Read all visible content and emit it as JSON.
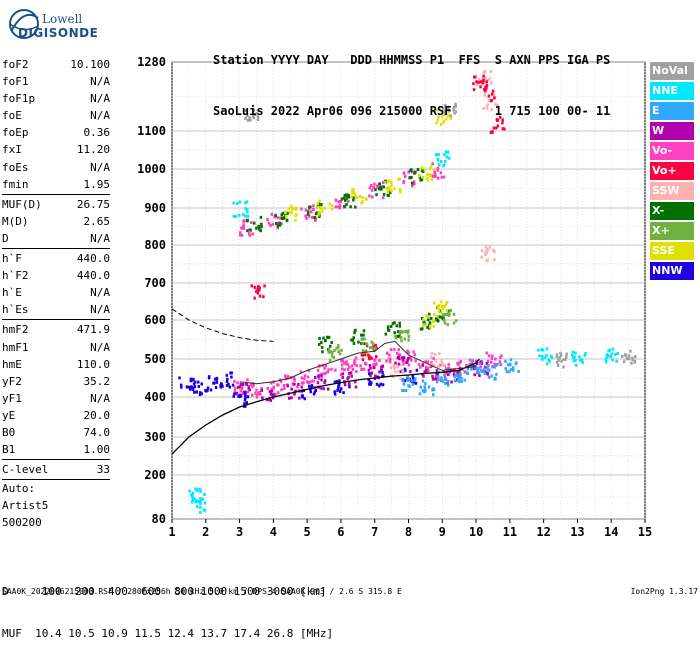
{
  "logo": {
    "line1": "Lowell",
    "line2": "DIGISONDE"
  },
  "header": {
    "line1": "Station YYYY DAY   DDD HHMMSS P1  FFS  S AXN PPS IGA PS",
    "line2": "SaoLuis 2022 Apr06 096 215000 RSF      1 715 100 00- 11"
  },
  "params": {
    "group1": [
      {
        "label": "foF2",
        "value": "10.100"
      },
      {
        "label": "foF1",
        "value": "N/A"
      },
      {
        "label": "foF1p",
        "value": "N/A"
      },
      {
        "label": "foE",
        "value": "N/A"
      },
      {
        "label": "foEp",
        "value": "0.36"
      },
      {
        "label": "fxI",
        "value": "11.20"
      },
      {
        "label": "foEs",
        "value": "N/A"
      },
      {
        "label": "fmin",
        "value": "1.95"
      }
    ],
    "group2": [
      {
        "label": "MUF(D)",
        "value": "26.75"
      },
      {
        "label": "M(D)",
        "value": "2.65"
      },
      {
        "label": "D",
        "value": "N/A"
      }
    ],
    "group3": [
      {
        "label": "h`F",
        "value": "440.0"
      },
      {
        "label": "h`F2",
        "value": "440.0"
      },
      {
        "label": "h`E",
        "value": "N/A"
      },
      {
        "label": "h`Es",
        "value": "N/A"
      }
    ],
    "group4": [
      {
        "label": "hmF2",
        "value": "471.9"
      },
      {
        "label": "hmF1",
        "value": "N/A"
      },
      {
        "label": "hmE",
        "value": "110.0"
      },
      {
        "label": "yF2",
        "value": "35.2"
      },
      {
        "label": "yF1",
        "value": "N/A"
      },
      {
        "label": "yE",
        "value": "20.0"
      },
      {
        "label": "B0",
        "value": "74.0"
      },
      {
        "label": "B1",
        "value": "1.00"
      }
    ],
    "group5": [
      {
        "label": "C-level",
        "value": "33"
      }
    ]
  },
  "auto": {
    "line1": "Auto:",
    "line2": "Artist5",
    "line3": "500200"
  },
  "muf_table": {
    "d_row": "D     100  200  400  600  800 1000 1500 3000 [km]",
    "muf_row": "MUF  10.4 10.5 10.9 11.5 12.4 13.7 17.4 26.8 [MHz]"
  },
  "footer": {
    "left": "SAA0K_2022096215000.RSF / 280fx256h 50 kHz 5.0 km / DPS-4 SAA0K 903 / 2.6 S 315.8 E",
    "right": "Ion2Png 1.3.17"
  },
  "legend": [
    {
      "label": "NoVal",
      "color": "#a0a0a0"
    },
    {
      "label": "NNE",
      "color": "#00e8ff"
    },
    {
      "label": "E",
      "color": "#30a8ff"
    },
    {
      "label": "W",
      "color": "#b000b0"
    },
    {
      "label": "Vo-",
      "color": "#ff40c0"
    },
    {
      "label": "Vo+",
      "color": "#ff0040"
    },
    {
      "label": "SSW",
      "color": "#ffb0b0"
    },
    {
      "label": "X-",
      "color": "#007000"
    },
    {
      "label": "X+",
      "color": "#70b040"
    },
    {
      "label": "SSE",
      "color": "#e0e000"
    },
    {
      "label": "NNW",
      "color": "#2000e0"
    }
  ],
  "chart_data": {
    "type": "scatter",
    "xlim": [
      1,
      15
    ],
    "ylim": [
      80,
      1280
    ],
    "xticks": [
      1,
      2,
      3,
      4,
      5,
      6,
      7,
      8,
      9,
      10,
      11,
      12,
      13,
      14,
      15
    ],
    "yticks": [
      80,
      200,
      300,
      400,
      500,
      600,
      700,
      800,
      900,
      1000,
      1100,
      1280
    ],
    "grid": true,
    "series": [
      {
        "name": "Vo-",
        "color": "#ff40c0",
        "points": [
          [
            3.0,
            430
          ],
          [
            3.5,
            420
          ],
          [
            4.0,
            430
          ],
          [
            4.5,
            440
          ],
          [
            5.0,
            460
          ],
          [
            5.5,
            470
          ],
          [
            6.0,
            480
          ],
          [
            6.5,
            490
          ],
          [
            7.0,
            500
          ],
          [
            7.5,
            510
          ],
          [
            8.0,
            505
          ],
          [
            8.5,
            490
          ],
          [
            9.0,
            470
          ],
          [
            9.5,
            480
          ],
          [
            10.0,
            490
          ],
          [
            10.5,
            500
          ],
          [
            3.2,
            850
          ],
          [
            4.0,
            870
          ],
          [
            5.0,
            890
          ],
          [
            6.0,
            920
          ],
          [
            7.0,
            950
          ],
          [
            8.0,
            980
          ],
          [
            8.8,
            1000
          ]
        ]
      },
      {
        "name": "W",
        "color": "#b000b0",
        "points": [
          [
            3.1,
            420
          ],
          [
            3.8,
            410
          ],
          [
            4.6,
            420
          ],
          [
            5.4,
            440
          ],
          [
            6.2,
            450
          ],
          [
            7.0,
            470
          ],
          [
            7.8,
            490
          ],
          [
            8.6,
            470
          ],
          [
            9.3,
            460
          ],
          [
            10.1,
            480
          ]
        ]
      },
      {
        "name": "NNW",
        "color": "#2000e0",
        "points": [
          [
            1.4,
            440
          ],
          [
            1.8,
            430
          ],
          [
            2.2,
            440
          ],
          [
            2.6,
            450
          ],
          [
            3.0,
            400
          ],
          [
            5.0,
            415
          ],
          [
            6.0,
            430
          ],
          [
            7.0,
            450
          ],
          [
            8.0,
            460
          ]
        ]
      },
      {
        "name": "E",
        "color": "#30a8ff",
        "points": [
          [
            8.0,
            440
          ],
          [
            8.5,
            430
          ],
          [
            9.0,
            450
          ],
          [
            9.5,
            460
          ],
          [
            10.0,
            480
          ],
          [
            10.5,
            470
          ],
          [
            11.0,
            490
          ]
        ]
      },
      {
        "name": "X-",
        "color": "#007000",
        "points": [
          [
            3.4,
            860
          ],
          [
            4.2,
            875
          ],
          [
            5.2,
            895
          ],
          [
            6.2,
            925
          ],
          [
            7.2,
            955
          ],
          [
            8.2,
            985
          ],
          [
            5.5,
            540
          ],
          [
            6.5,
            560
          ],
          [
            7.5,
            580
          ],
          [
            8.5,
            600
          ],
          [
            9.0,
            620
          ]
        ]
      },
      {
        "name": "SSE",
        "color": "#e0e000",
        "points": [
          [
            4.5,
            890
          ],
          [
            5.5,
            905
          ],
          [
            6.5,
            935
          ],
          [
            7.5,
            965
          ],
          [
            8.5,
            995
          ],
          [
            8.6,
            600
          ],
          [
            8.9,
            640
          ],
          [
            9.0,
            1140
          ]
        ]
      },
      {
        "name": "NNE",
        "color": "#00e8ff",
        "points": [
          [
            3.0,
            900
          ],
          [
            9.0,
            1030
          ],
          [
            1.7,
            150
          ],
          [
            1.8,
            120
          ],
          [
            12.0,
            510
          ],
          [
            13.0,
            505
          ],
          [
            14.0,
            510
          ]
        ]
      },
      {
        "name": "SSW",
        "color": "#ffb0b0",
        "points": [
          [
            10.2,
            1240
          ],
          [
            10.4,
            1180
          ],
          [
            10.3,
            780
          ],
          [
            7.6,
            470
          ],
          [
            8.8,
            500
          ]
        ]
      },
      {
        "name": "Vo+",
        "color": "#ff0040",
        "points": [
          [
            3.5,
            680
          ],
          [
            10.1,
            1230
          ],
          [
            10.4,
            1200
          ],
          [
            10.6,
            1120
          ],
          [
            6.8,
            520
          ]
        ]
      },
      {
        "name": "X+",
        "color": "#70b040",
        "points": [
          [
            5.8,
            520
          ],
          [
            6.8,
            540
          ],
          [
            7.8,
            560
          ],
          [
            9.2,
            610
          ]
        ]
      },
      {
        "name": "NoVal",
        "color": "#a0a0a0",
        "points": [
          [
            3.3,
            1150
          ],
          [
            9.2,
            1160
          ],
          [
            12.5,
            500
          ],
          [
            14.5,
            505
          ]
        ]
      }
    ],
    "profile_curve": [
      [
        1.0,
        255
      ],
      [
        1.5,
        300
      ],
      [
        2.0,
        330
      ],
      [
        2.5,
        355
      ],
      [
        3.0,
        375
      ],
      [
        3.5,
        388
      ],
      [
        4.0,
        400
      ],
      [
        4.5,
        410
      ],
      [
        5.0,
        420
      ],
      [
        5.5,
        430
      ],
      [
        6.0,
        438
      ],
      [
        6.5,
        445
      ],
      [
        7.0,
        450
      ],
      [
        7.5,
        455
      ],
      [
        8.0,
        458
      ],
      [
        8.5,
        462
      ],
      [
        9.0,
        465
      ],
      [
        9.5,
        470
      ],
      [
        10.0,
        490
      ],
      [
        10.1,
        500
      ]
    ],
    "dashed_curve": [
      [
        1.0,
        630
      ],
      [
        1.5,
        600
      ],
      [
        2.0,
        580
      ],
      [
        2.5,
        565
      ],
      [
        3.0,
        555
      ],
      [
        3.5,
        548
      ],
      [
        4.0,
        545
      ]
    ],
    "trace_curve": [
      [
        3.0,
        440
      ],
      [
        3.5,
        435
      ],
      [
        4.0,
        440
      ],
      [
        4.5,
        450
      ],
      [
        5.0,
        470
      ],
      [
        5.5,
        485
      ],
      [
        6.0,
        500
      ],
      [
        6.5,
        515
      ],
      [
        7.0,
        520
      ],
      [
        7.3,
        540
      ],
      [
        7.6,
        545
      ],
      [
        8.0,
        510
      ],
      [
        8.5,
        490
      ],
      [
        9.0,
        470
      ],
      [
        9.5,
        475
      ],
      [
        10.0,
        480
      ]
    ]
  }
}
